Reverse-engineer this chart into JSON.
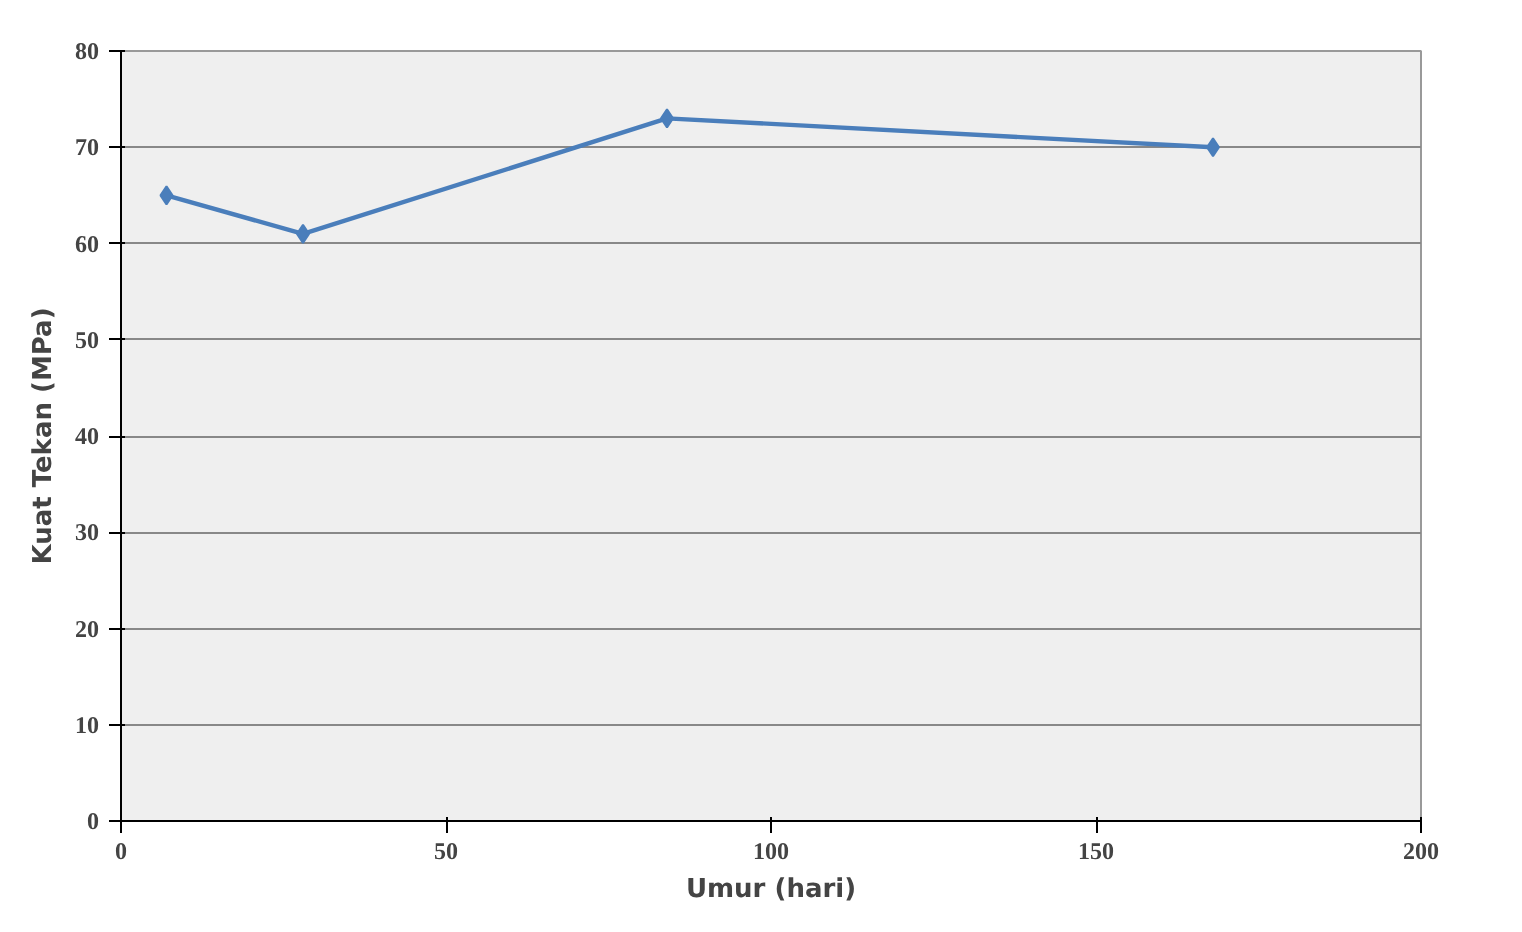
{
  "chart_data": {
    "type": "line",
    "xlabel": "Umur (hari)",
    "ylabel": "Kuat Tekan (MPa)",
    "x": [
      7,
      28,
      84,
      168
    ],
    "series": [
      {
        "color": "#4a7ebb",
        "values": [
          65,
          61,
          73,
          70
        ]
      }
    ],
    "xlim": [
      0,
      200
    ],
    "xticks": [
      0,
      50,
      100,
      150,
      200
    ],
    "ylim": [
      0,
      80
    ],
    "yticks": [
      0,
      10,
      20,
      30,
      40,
      50,
      60,
      70,
      80
    ],
    "grid": "y",
    "marker": "diamond",
    "line_style": "solid"
  }
}
